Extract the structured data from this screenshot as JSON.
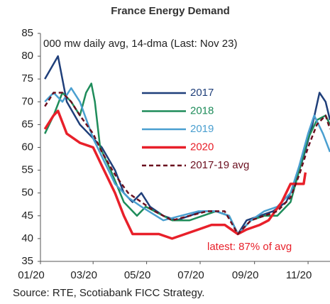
{
  "chart_data": {
    "type": "line",
    "title": "France Energy Demand",
    "subtitle": "000 mw daily avg, 14-dma (Last: Nov 23)",
    "annotation": "latest: 87% of avg",
    "source": "Source: RTE,  Scotiabank FICC  Strategy.",
    "xlim": [
      0,
      330
    ],
    "xticks": [
      {
        "value": 0,
        "label": "01/20"
      },
      {
        "value": 60,
        "label": "03/20"
      },
      {
        "value": 121,
        "label": "05/20"
      },
      {
        "value": 182,
        "label": "07/20"
      },
      {
        "value": 244,
        "label": "09/20"
      },
      {
        "value": 305,
        "label": "11/20"
      }
    ],
    "ylim": [
      35,
      85
    ],
    "yticks": [
      35,
      40,
      45,
      50,
      55,
      60,
      65,
      70,
      75,
      80,
      85
    ],
    "legend": "center",
    "series": [
      {
        "name": "2017",
        "color": "#1f3f7a",
        "dash": false,
        "x": [
          5,
          20,
          30,
          45,
          60,
          70,
          85,
          95,
          105,
          115,
          125,
          140,
          155,
          170,
          185,
          200,
          215,
          225,
          235,
          250,
          265,
          280,
          290,
          300,
          310,
          318,
          325,
          330
        ],
        "values": [
          75,
          80,
          70,
          65,
          62,
          60,
          55,
          50,
          48,
          50,
          47,
          45,
          44,
          45,
          46,
          46,
          45,
          41,
          44,
          45,
          46,
          48,
          52,
          58,
          65,
          72,
          70,
          66
        ]
      },
      {
        "name": "2018",
        "color": "#1e8c5a",
        "dash": false,
        "x": [
          5,
          15,
          25,
          35,
          45,
          52,
          58,
          62,
          68,
          80,
          95,
          110,
          120,
          130,
          150,
          170,
          185,
          200,
          215,
          225,
          240,
          255,
          270,
          285,
          295,
          305,
          315,
          325,
          330
        ],
        "values": [
          63,
          67,
          72,
          70,
          67,
          72,
          74,
          70,
          60,
          55,
          48,
          45,
          47,
          46,
          44,
          44,
          45,
          46,
          45,
          41,
          44,
          45,
          45,
          48,
          55,
          62,
          66,
          67,
          65
        ]
      },
      {
        "name": "2019",
        "color": "#4a9fd0",
        "dash": false,
        "x": [
          5,
          15,
          25,
          35,
          45,
          60,
          70,
          85,
          100,
          115,
          140,
          160,
          180,
          200,
          215,
          225,
          240,
          255,
          270,
          285,
          295,
          305,
          312,
          322,
          330
        ],
        "values": [
          70,
          72,
          70,
          73,
          70,
          62,
          58,
          52,
          49,
          47,
          44,
          45,
          46,
          46,
          45,
          41,
          44,
          46,
          47,
          50,
          56,
          63,
          67,
          63,
          59
        ]
      },
      {
        "name": "2020",
        "color": "#e8202a",
        "dash": false,
        "x": [
          5,
          15,
          20,
          30,
          45,
          60,
          70,
          85,
          95,
          105,
          120,
          135,
          150,
          165,
          180,
          195,
          210,
          225,
          235,
          250,
          260,
          275,
          285,
          295,
          300,
          302
        ],
        "values": [
          64,
          67,
          68,
          63,
          61,
          60,
          56,
          50,
          45,
          41,
          41,
          41,
          40,
          41,
          42,
          43,
          43,
          41,
          42,
          43,
          44,
          48,
          52,
          52,
          52,
          54.5
        ]
      },
      {
        "name": "2017-19 avg",
        "color": "#6b0f1f",
        "dash": true,
        "x": [
          5,
          15,
          25,
          35,
          45,
          60,
          70,
          85,
          100,
          115,
          130,
          150,
          170,
          190,
          210,
          225,
          240,
          255,
          270,
          285,
          295,
          305,
          315,
          325,
          330
        ],
        "values": [
          69,
          72,
          72,
          70,
          67,
          63,
          59,
          54,
          50,
          48,
          46,
          44,
          45,
          46,
          46,
          41,
          44,
          45,
          46,
          49,
          54,
          60,
          65,
          67,
          64
        ]
      }
    ]
  }
}
